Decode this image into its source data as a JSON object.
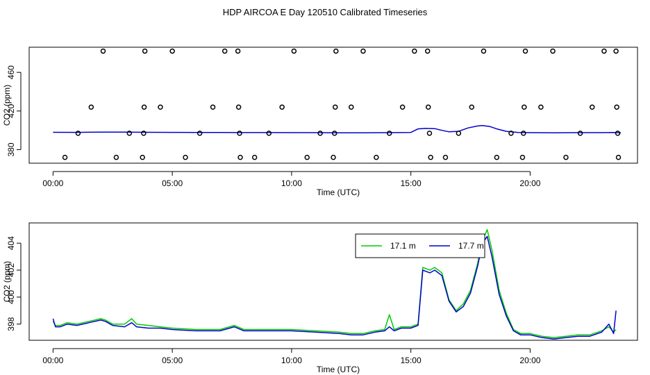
{
  "title": "HDP AIRCOA E  Day 120510  Calibrated Timeseries",
  "chart_data": [
    {
      "type": "scatter+line",
      "xlabel": "Time (UTC)",
      "ylabel": "CO2 (ppm)",
      "xlim": [
        -1.0,
        24.5
      ],
      "ylim": [
        366,
        486
      ],
      "xticks": [
        {
          "value": 0,
          "label": "00:00"
        },
        {
          "value": 5,
          "label": "05:00"
        },
        {
          "value": 10,
          "label": "10:00"
        },
        {
          "value": 15,
          "label": "15:00"
        },
        {
          "value": 20,
          "label": "20:00"
        }
      ],
      "yticks": [
        {
          "value": 380,
          "label": "380"
        },
        {
          "value": 420,
          "label": "420"
        },
        {
          "value": 460,
          "label": "460"
        }
      ],
      "points": [
        {
          "x": 0.5,
          "y": 372
        },
        {
          "x": 1.05,
          "y": 397
        },
        {
          "x": 1.6,
          "y": 424
        },
        {
          "x": 2.1,
          "y": 482
        },
        {
          "x": 2.65,
          "y": 372
        },
        {
          "x": 3.2,
          "y": 397
        },
        {
          "x": 3.75,
          "y": 372
        },
        {
          "x": 3.8,
          "y": 397
        },
        {
          "x": 3.82,
          "y": 424
        },
        {
          "x": 3.85,
          "y": 482
        },
        {
          "x": 4.5,
          "y": 424
        },
        {
          "x": 5.0,
          "y": 482
        },
        {
          "x": 5.55,
          "y": 372
        },
        {
          "x": 6.15,
          "y": 397
        },
        {
          "x": 6.7,
          "y": 424
        },
        {
          "x": 7.2,
          "y": 482
        },
        {
          "x": 7.75,
          "y": 482
        },
        {
          "x": 7.78,
          "y": 424
        },
        {
          "x": 7.82,
          "y": 397
        },
        {
          "x": 7.85,
          "y": 372
        },
        {
          "x": 8.45,
          "y": 372
        },
        {
          "x": 9.05,
          "y": 397
        },
        {
          "x": 9.6,
          "y": 424
        },
        {
          "x": 10.1,
          "y": 482
        },
        {
          "x": 10.65,
          "y": 372
        },
        {
          "x": 11.2,
          "y": 397
        },
        {
          "x": 11.75,
          "y": 372
        },
        {
          "x": 11.8,
          "y": 397
        },
        {
          "x": 11.83,
          "y": 424
        },
        {
          "x": 11.86,
          "y": 482
        },
        {
          "x": 12.5,
          "y": 424
        },
        {
          "x": 13.0,
          "y": 482
        },
        {
          "x": 13.55,
          "y": 372
        },
        {
          "x": 14.1,
          "y": 397
        },
        {
          "x": 14.65,
          "y": 424
        },
        {
          "x": 15.15,
          "y": 482
        },
        {
          "x": 15.7,
          "y": 482
        },
        {
          "x": 15.73,
          "y": 424
        },
        {
          "x": 15.78,
          "y": 397
        },
        {
          "x": 15.83,
          "y": 372
        },
        {
          "x": 16.45,
          "y": 372
        },
        {
          "x": 17.0,
          "y": 397
        },
        {
          "x": 17.55,
          "y": 424
        },
        {
          "x": 18.05,
          "y": 482
        },
        {
          "x": 18.6,
          "y": 372
        },
        {
          "x": 19.2,
          "y": 397
        },
        {
          "x": 19.68,
          "y": 372
        },
        {
          "x": 19.72,
          "y": 397
        },
        {
          "x": 19.75,
          "y": 424
        },
        {
          "x": 19.8,
          "y": 482
        },
        {
          "x": 20.45,
          "y": 424
        },
        {
          "x": 20.95,
          "y": 482
        },
        {
          "x": 21.5,
          "y": 372
        },
        {
          "x": 22.1,
          "y": 397
        },
        {
          "x": 22.6,
          "y": 424
        },
        {
          "x": 23.1,
          "y": 482
        },
        {
          "x": 23.6,
          "y": 482
        },
        {
          "x": 23.63,
          "y": 424
        },
        {
          "x": 23.67,
          "y": 397
        },
        {
          "x": 23.7,
          "y": 372
        }
      ],
      "line": {
        "color": "#0000cc",
        "x": [
          0,
          1,
          2,
          3,
          4,
          5,
          6,
          7,
          8,
          9,
          10,
          11,
          12,
          13,
          14,
          15,
          15.3,
          15.6,
          16.0,
          16.3,
          16.6,
          17.0,
          17.4,
          17.8,
          18.0,
          18.3,
          18.6,
          19.0,
          19.5,
          20,
          21,
          22,
          23,
          23.5,
          23.8
        ],
        "y": [
          398,
          397.9,
          398.2,
          398.1,
          398,
          397.9,
          397.8,
          397.8,
          397.7,
          397.7,
          397.6,
          397.6,
          397.5,
          397.5,
          397.6,
          397.8,
          401.5,
          402,
          401.8,
          400,
          398.5,
          399,
          402.5,
          404.5,
          405,
          404,
          401.5,
          399,
          397.8,
          397.6,
          397.5,
          397.6,
          397.6,
          397.8,
          397.5
        ]
      }
    },
    {
      "type": "line",
      "xlabel": "Time (UTC)",
      "ylabel": "CO2 (ppm)",
      "xlim": [
        -1.0,
        24.5
      ],
      "ylim": [
        396.8,
        405.5
      ],
      "xticks": [
        {
          "value": 0,
          "label": "00:00"
        },
        {
          "value": 5,
          "label": "05:00"
        },
        {
          "value": 10,
          "label": "10:00"
        },
        {
          "value": 15,
          "label": "15:00"
        },
        {
          "value": 20,
          "label": "20:00"
        }
      ],
      "yticks": [
        {
          "value": 398,
          "label": "398"
        },
        {
          "value": 400,
          "label": "400"
        },
        {
          "value": 402,
          "label": "402"
        },
        {
          "value": 404,
          "label": "404"
        }
      ],
      "legend": {
        "placement": "top-center"
      },
      "series": [
        {
          "name": "17.1 m",
          "color": "#00cc00",
          "x": [
            0,
            0.1,
            0.3,
            0.6,
            1.0,
            1.5,
            2.0,
            2.2,
            2.5,
            3.0,
            3.3,
            3.5,
            4.0,
            4.5,
            5.0,
            6.0,
            7.0,
            7.6,
            8.0,
            9.0,
            10.0,
            11.0,
            12.0,
            12.5,
            13.0,
            13.5,
            13.9,
            14.1,
            14.3,
            14.6,
            15.0,
            15.3,
            15.5,
            15.8,
            16.0,
            16.3,
            16.6,
            16.9,
            17.2,
            17.5,
            17.8,
            18.0,
            18.2,
            18.4,
            18.7,
            19.0,
            19.3,
            19.6,
            20.0,
            20.5,
            21.0,
            21.5,
            22.0,
            22.5,
            23.0,
            23.3,
            23.5,
            23.6
          ],
          "y": [
            398.2,
            397.9,
            397.9,
            398.1,
            398.0,
            398.2,
            398.4,
            398.3,
            398.0,
            398.0,
            398.4,
            398.0,
            397.9,
            397.8,
            397.7,
            397.6,
            397.6,
            397.9,
            397.6,
            397.6,
            397.6,
            397.5,
            397.4,
            397.3,
            397.3,
            397.5,
            397.6,
            398.7,
            397.6,
            397.8,
            397.8,
            398.0,
            402.2,
            402.0,
            402.2,
            401.8,
            399.8,
            399.0,
            399.5,
            400.5,
            402.5,
            404.2,
            405.0,
            403.5,
            400.5,
            398.8,
            397.6,
            397.3,
            397.3,
            397.1,
            397.0,
            397.1,
            397.2,
            397.2,
            397.5,
            397.8,
            397.4,
            397.6
          ]
        },
        {
          "name": "17.7 m",
          "color": "#0000cc",
          "x": [
            0,
            0.1,
            0.3,
            0.6,
            1.0,
            1.5,
            2.0,
            2.2,
            2.5,
            3.0,
            3.3,
            3.5,
            4.0,
            4.5,
            5.0,
            6.0,
            7.0,
            7.6,
            8.0,
            9.0,
            10.0,
            11.0,
            12.0,
            12.5,
            13.0,
            13.5,
            13.9,
            14.1,
            14.3,
            14.6,
            15.0,
            15.3,
            15.5,
            15.8,
            16.0,
            16.3,
            16.6,
            16.9,
            17.2,
            17.5,
            17.8,
            18.0,
            18.2,
            18.4,
            18.7,
            19.0,
            19.3,
            19.6,
            20.0,
            20.5,
            21.0,
            21.5,
            22.0,
            22.5,
            23.0,
            23.3,
            23.5,
            23.6
          ],
          "y": [
            398.4,
            397.8,
            397.8,
            398.0,
            397.9,
            398.1,
            398.3,
            398.2,
            397.9,
            397.8,
            398.1,
            397.8,
            397.7,
            397.7,
            397.6,
            397.5,
            397.5,
            397.8,
            397.5,
            397.5,
            397.5,
            397.4,
            397.3,
            397.2,
            397.2,
            397.4,
            397.5,
            397.8,
            397.5,
            397.7,
            397.7,
            397.9,
            402.0,
            401.8,
            402.0,
            401.6,
            399.7,
            398.9,
            399.3,
            400.3,
            402.3,
            404.0,
            404.5,
            403.0,
            400.2,
            398.6,
            397.5,
            397.2,
            397.2,
            397.0,
            396.9,
            397.0,
            397.1,
            397.1,
            397.4,
            398.0,
            397.3,
            399.0
          ]
        }
      ]
    }
  ]
}
